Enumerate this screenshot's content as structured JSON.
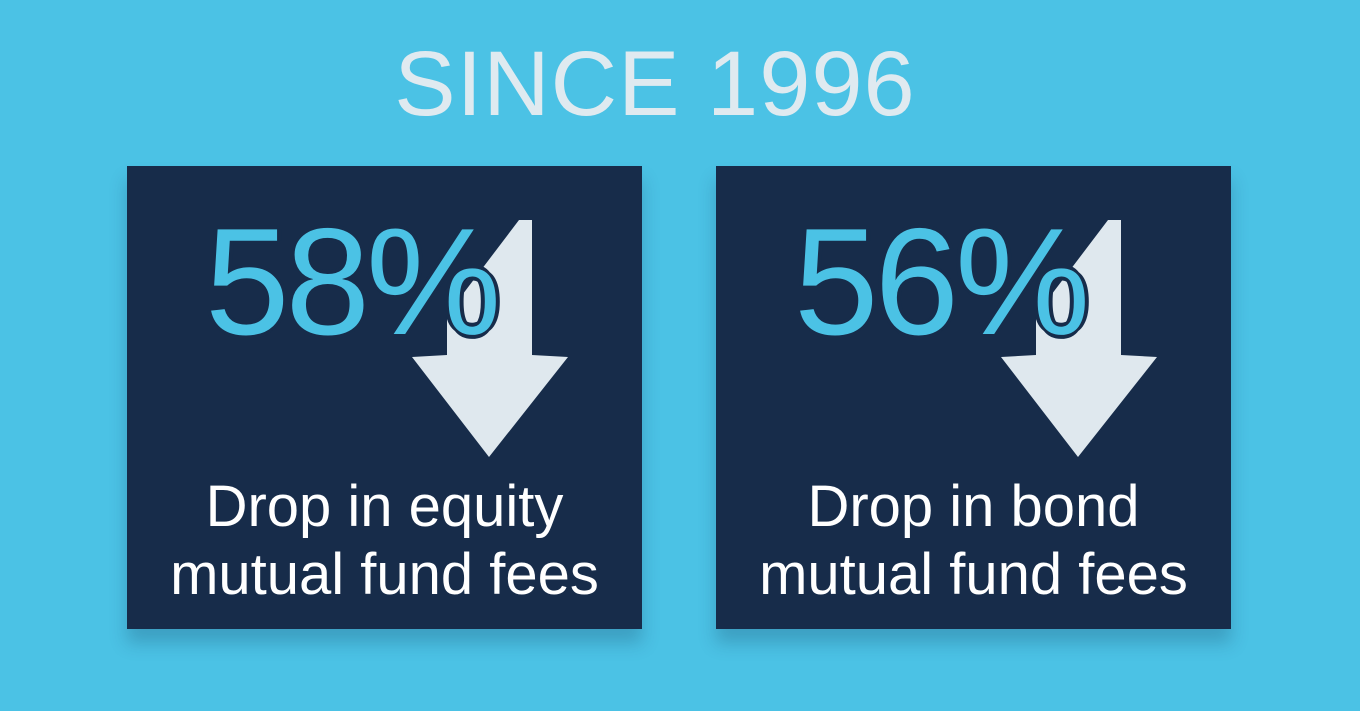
{
  "title": "SINCE 1996",
  "colors": {
    "background": "#4bc2e5",
    "card": "#172c4a",
    "accent": "#4bc2e5",
    "arrow": "#dfe8ee",
    "title": "#dfeaf0"
  },
  "cards": [
    {
      "value": "58%",
      "caption_line1": "Drop in equity",
      "caption_line2": "mutual fund fees",
      "icon": "arrow-down-icon"
    },
    {
      "value": "56%",
      "caption_line1": "Drop in bond",
      "caption_line2": "mutual fund fees",
      "icon": "arrow-down-icon"
    }
  ]
}
